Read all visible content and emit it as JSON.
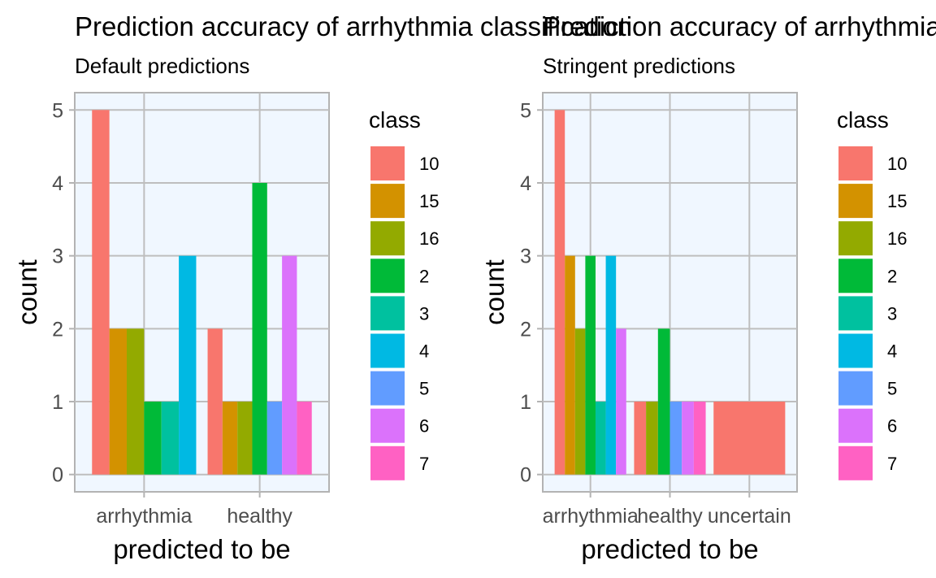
{
  "chart_data": [
    {
      "type": "bar",
      "title": "Prediction accuracy of arrhythmia classification",
      "subtitle": "Default predictions",
      "xlabel": "predicted to be",
      "ylabel": "count",
      "ylim": [
        0,
        5
      ],
      "y_ticks": [
        0,
        1,
        2,
        3,
        4,
        5
      ],
      "grid": true,
      "legend_position": "right",
      "legend_title": "class",
      "categories": [
        "arrhythmia",
        "healthy"
      ],
      "series": [
        {
          "name": "10",
          "color": "#F8766D",
          "values": [
            5,
            2
          ]
        },
        {
          "name": "15",
          "color": "#D39200",
          "values": [
            2,
            1
          ]
        },
        {
          "name": "16",
          "color": "#93AA00",
          "values": [
            2,
            1
          ]
        },
        {
          "name": "2",
          "color": "#00BA38",
          "values": [
            1,
            4
          ]
        },
        {
          "name": "3",
          "color": "#00C19F",
          "values": [
            1,
            null
          ]
        },
        {
          "name": "4",
          "color": "#00B9E3",
          "values": [
            3,
            null
          ]
        },
        {
          "name": "5",
          "color": "#619CFF",
          "values": [
            null,
            1
          ]
        },
        {
          "name": "6",
          "color": "#DB72FB",
          "values": [
            null,
            3
          ]
        },
        {
          "name": "7",
          "color": "#FF61C3",
          "values": [
            null,
            1
          ]
        }
      ]
    },
    {
      "type": "bar",
      "title": "Prediction accuracy of arrhythmia classification",
      "subtitle": "Stringent predictions",
      "xlabel": "predicted to be",
      "ylabel": "count",
      "ylim": [
        0,
        5
      ],
      "y_ticks": [
        0,
        1,
        2,
        3,
        4,
        5
      ],
      "grid": true,
      "legend_position": "right",
      "legend_title": "class",
      "categories": [
        "arrhythmia",
        "healthy",
        "uncertain"
      ],
      "series": [
        {
          "name": "10",
          "color": "#F8766D",
          "values": [
            5,
            1,
            1
          ]
        },
        {
          "name": "15",
          "color": "#D39200",
          "values": [
            3,
            null,
            null
          ]
        },
        {
          "name": "16",
          "color": "#93AA00",
          "values": [
            2,
            1,
            null
          ]
        },
        {
          "name": "2",
          "color": "#00BA38",
          "values": [
            3,
            2,
            null
          ]
        },
        {
          "name": "3",
          "color": "#00C19F",
          "values": [
            1,
            null,
            null
          ]
        },
        {
          "name": "4",
          "color": "#00B9E3",
          "values": [
            3,
            null,
            null
          ]
        },
        {
          "name": "5",
          "color": "#619CFF",
          "values": [
            null,
            1,
            null
          ]
        },
        {
          "name": "6",
          "color": "#DB72FB",
          "values": [
            2,
            1,
            null
          ]
        },
        {
          "name": "7",
          "color": "#FF61C3",
          "values": [
            null,
            1,
            null
          ]
        }
      ]
    }
  ]
}
